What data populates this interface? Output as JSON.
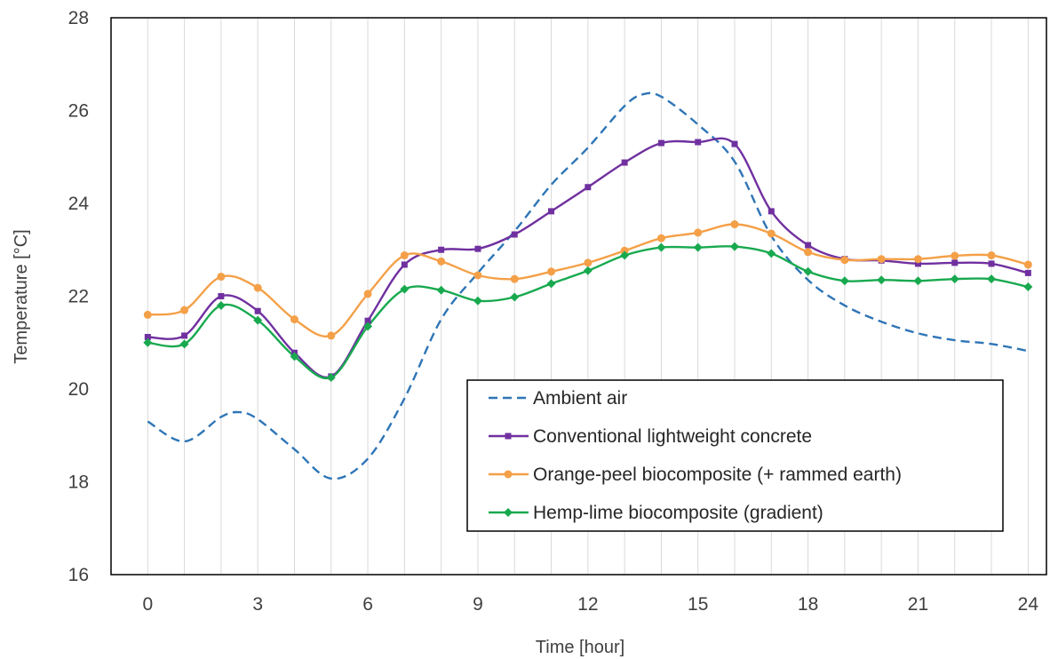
{
  "chart_data": {
    "type": "line",
    "xlabel": "Time [hour]",
    "ylabel": "Temperature [°C]",
    "xlim": [
      -1,
      24.5
    ],
    "ylim": [
      16,
      28
    ],
    "x_ticks": [
      0,
      3,
      6,
      9,
      12,
      15,
      18,
      21,
      24
    ],
    "y_ticks": [
      16,
      18,
      20,
      22,
      24,
      26,
      28
    ],
    "grid": "vertical",
    "legend_position": "bottom-right",
    "series": [
      {
        "name": "Ambient air",
        "color": "#2e75b6",
        "style": "dashed",
        "marker": "none",
        "x": [
          0,
          1,
          2,
          2.5,
          3,
          4,
          5,
          6,
          7,
          8,
          9,
          10,
          11,
          12,
          13,
          13.5,
          14,
          15,
          16,
          17,
          18,
          19,
          20,
          21,
          22,
          23,
          24
        ],
        "y": [
          19.3,
          18.87,
          19.4,
          19.5,
          19.35,
          18.7,
          18.07,
          18.5,
          19.8,
          21.5,
          22.5,
          23.4,
          24.4,
          25.2,
          26.1,
          26.35,
          26.3,
          25.7,
          24.9,
          23.3,
          22.35,
          21.8,
          21.45,
          21.2,
          21.05,
          20.97,
          20.82
        ]
      },
      {
        "name": "Conventional lightweight concrete",
        "color": "#7030a0",
        "style": "solid",
        "marker": "square",
        "x": [
          0,
          1,
          2,
          3,
          4,
          5,
          6,
          7,
          8,
          9,
          10,
          11,
          12,
          13,
          14,
          15,
          16,
          17,
          18,
          19,
          20,
          21,
          22,
          23,
          24
        ],
        "y": [
          21.12,
          21.15,
          22.0,
          21.68,
          20.78,
          20.27,
          21.47,
          22.68,
          23.0,
          23.02,
          23.33,
          23.83,
          24.35,
          24.88,
          25.3,
          25.32,
          25.28,
          23.83,
          23.1,
          22.8,
          22.77,
          22.7,
          22.72,
          22.7,
          22.5
        ]
      },
      {
        "name": "Orange-peel biocomposite (+ rammed earth)",
        "color": "#f4a048",
        "style": "solid",
        "marker": "circle",
        "x": [
          0,
          1,
          2,
          3,
          4,
          5,
          6,
          7,
          8,
          9,
          10,
          11,
          12,
          13,
          14,
          15,
          16,
          17,
          18,
          19,
          20,
          21,
          22,
          23,
          24
        ],
        "y": [
          21.6,
          21.7,
          22.42,
          22.18,
          21.5,
          21.15,
          22.05,
          22.88,
          22.75,
          22.45,
          22.37,
          22.53,
          22.72,
          22.98,
          23.25,
          23.37,
          23.55,
          23.35,
          22.95,
          22.78,
          22.8,
          22.8,
          22.87,
          22.88,
          22.68
        ]
      },
      {
        "name": "Hemp-lime biocomposite (gradient)",
        "color": "#18a94f",
        "style": "solid",
        "marker": "diamond",
        "x": [
          0,
          1,
          2,
          3,
          4,
          5,
          6,
          7,
          8,
          9,
          10,
          11,
          12,
          13,
          14,
          15,
          16,
          17,
          18,
          19,
          20,
          21,
          22,
          23,
          24
        ],
        "y": [
          21.0,
          20.97,
          21.8,
          21.48,
          20.7,
          20.25,
          21.35,
          22.15,
          22.13,
          21.9,
          21.98,
          22.27,
          22.55,
          22.88,
          23.05,
          23.05,
          23.07,
          22.92,
          22.53,
          22.33,
          22.35,
          22.33,
          22.37,
          22.37,
          22.2
        ]
      }
    ]
  }
}
